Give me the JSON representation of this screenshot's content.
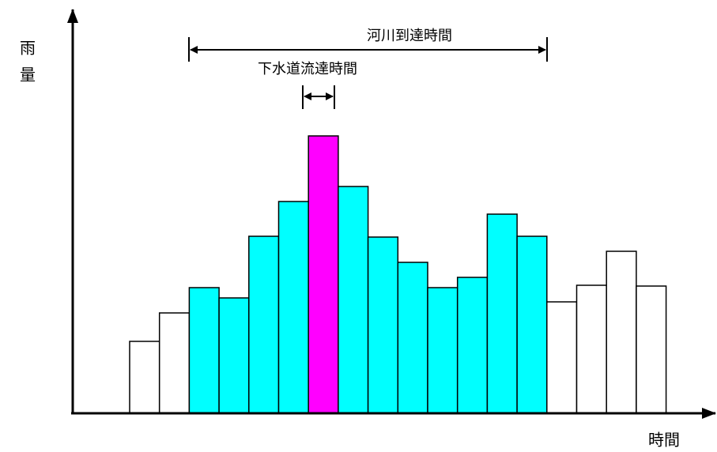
{
  "chart_data": {
    "type": "bar",
    "y_label": "雨量",
    "x_label": "時間",
    "annotations": [
      "河川到達時間",
      "下水道流達時間"
    ],
    "values": [
      91,
      127,
      159,
      146,
      224,
      268,
      351,
      287,
      223,
      191,
      159,
      172,
      252,
      224,
      141,
      162,
      205,
      161
    ],
    "colors": [
      "#ffffff",
      "#ffffff",
      "#00ffff",
      "#00ffff",
      "#00ffff",
      "#00ffff",
      "#ff00ff",
      "#00ffff",
      "#00ffff",
      "#00ffff",
      "#00ffff",
      "#00ffff",
      "#00ffff",
      "#00ffff",
      "#ffffff",
      "#ffffff",
      "#ffffff",
      "#ffffff"
    ],
    "ylim": [
      0,
      511
    ]
  }
}
